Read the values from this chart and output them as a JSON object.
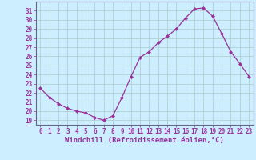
{
  "x": [
    0,
    1,
    2,
    3,
    4,
    5,
    6,
    7,
    8,
    9,
    10,
    11,
    12,
    13,
    14,
    15,
    16,
    17,
    18,
    19,
    20,
    21,
    22,
    23
  ],
  "y": [
    22.5,
    21.5,
    20.8,
    20.3,
    20.0,
    19.8,
    19.3,
    19.0,
    19.5,
    21.5,
    23.8,
    25.9,
    26.5,
    27.5,
    28.2,
    29.0,
    30.2,
    31.2,
    31.3,
    30.4,
    28.5,
    26.5,
    25.2,
    23.8
  ],
  "line_color": "#993399",
  "marker": "D",
  "markersize": 2.0,
  "linewidth": 0.9,
  "bg_color": "#cceeff",
  "grid_color": "#aacccc",
  "xlabel": "Windchill (Refroidissement éolien,°C)",
  "ylabel": "",
  "xlim": [
    -0.5,
    23.5
  ],
  "ylim": [
    18.5,
    32.0
  ],
  "xticks": [
    0,
    1,
    2,
    3,
    4,
    5,
    6,
    7,
    8,
    9,
    10,
    11,
    12,
    13,
    14,
    15,
    16,
    17,
    18,
    19,
    20,
    21,
    22,
    23
  ],
  "yticks": [
    19,
    20,
    21,
    22,
    23,
    24,
    25,
    26,
    27,
    28,
    29,
    30,
    31
  ],
  "tick_label_fontsize": 5.5,
  "xlabel_fontsize": 6.5
}
